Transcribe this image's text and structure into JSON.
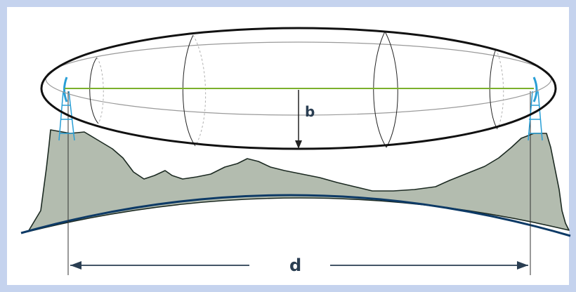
{
  "labels": {
    "clearance": "b",
    "distance": "d"
  },
  "colors": {
    "frame": "#c5d3ee",
    "terrain_fill": "#b3bcaf",
    "earth_curve": "#0d3a66",
    "line_of_sight": "#7bb02c",
    "antenna": "#2a9fd6",
    "ellipse": "#111111"
  }
}
